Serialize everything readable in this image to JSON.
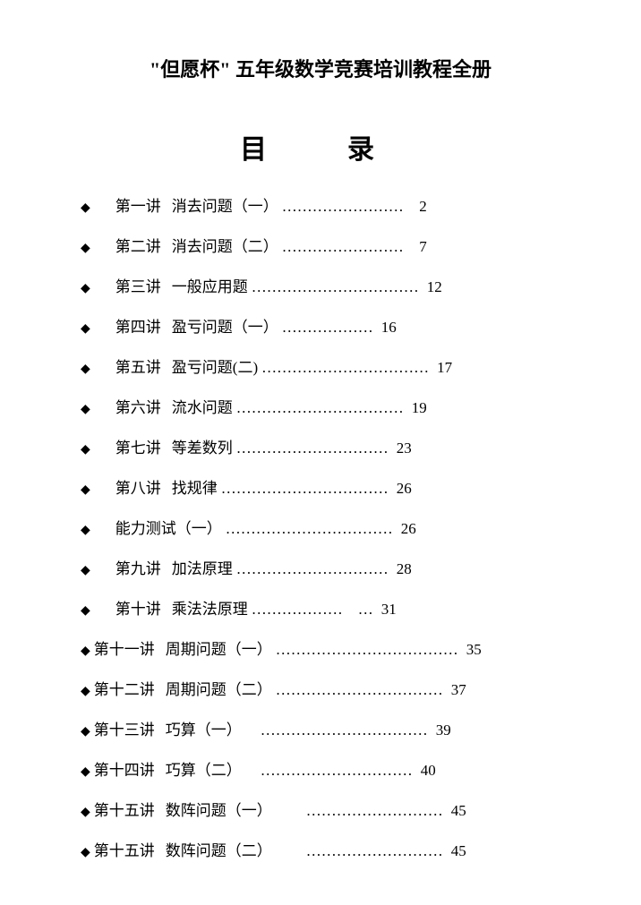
{
  "document": {
    "title": "\"但愿杯\" 五年级数学竞赛培训教程全册",
    "toc_heading": "目　录",
    "text_color": "#000000",
    "background_color": "#ffffff",
    "title_fontsize": 22,
    "heading_fontsize": 30,
    "row_fontsize": 17,
    "row_spacing": 20
  },
  "toc": {
    "bullet": "◆",
    "entries": [
      {
        "indent": 1,
        "chapter": "第一讲",
        "topic": "消去问题（一）",
        "dots": "……………………",
        "page": "2"
      },
      {
        "indent": 1,
        "chapter": "第二讲",
        "topic": "消去问题（二）",
        "dots": "……………………",
        "page": "7"
      },
      {
        "indent": 1,
        "chapter": "第三讲",
        "topic": "一般应用题",
        "dots": "……………………………",
        "page": "12"
      },
      {
        "indent": 1,
        "chapter": "第四讲",
        "topic": "盈亏问题（一）",
        "dots": "………………",
        "page": "16"
      },
      {
        "indent": 1,
        "chapter": "第五讲",
        "topic": "盈亏问题(二)",
        "dots": "……………………………",
        "page": "17"
      },
      {
        "indent": 1,
        "chapter": "第六讲",
        "topic": "流水问题",
        "dots": "……………………………",
        "page": "19"
      },
      {
        "indent": 1,
        "chapter": "第七讲",
        "topic": "等差数列",
        "dots": "…………………………",
        "page": "23"
      },
      {
        "indent": 1,
        "chapter": "第八讲",
        "topic": "找规律",
        "dots": "……………………………",
        "page": "26"
      },
      {
        "indent": 1,
        "chapter": "",
        "topic": "能力测试（一）",
        "dots": "……………………………",
        "page": "26"
      },
      {
        "indent": 1,
        "chapter": "第九讲",
        "topic": "加法原理",
        "dots": "…………………………",
        "page": "28"
      },
      {
        "indent": 1,
        "chapter": "第十讲",
        "topic": "乘法法原理",
        "dots": "………………　…",
        "page": "31"
      },
      {
        "indent": 0,
        "chapter": "第十一讲",
        "topic": "周期问题（一）",
        "dots": "………………………………",
        "page": "35"
      },
      {
        "indent": 0,
        "chapter": "第十二讲",
        "topic": "周期问题（二）",
        "dots": "……………………………",
        "page": "37"
      },
      {
        "indent": 0,
        "chapter": "第十三讲",
        "topic": "巧算（一）",
        "dots": "　……………………………",
        "page": "39"
      },
      {
        "indent": 0,
        "chapter": "第十四讲",
        "topic": "巧算（二）",
        "dots": "　…………………………",
        "page": "40"
      },
      {
        "indent": 0,
        "chapter": "第十五讲",
        "topic": "数阵问题（一）",
        "dots": "　　………………………",
        "page": "45"
      },
      {
        "indent": 0,
        "chapter": "第十五讲",
        "topic": "数阵问题（二）",
        "dots": "　　………………………",
        "page": "45"
      }
    ]
  }
}
